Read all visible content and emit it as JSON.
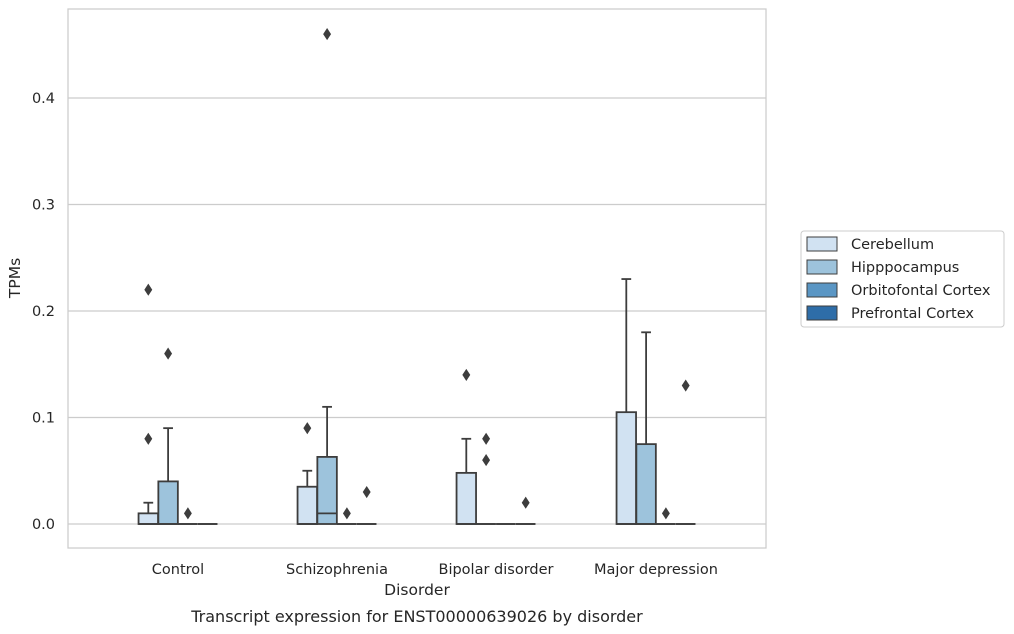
{
  "chart_data": {
    "type": "box",
    "xlabel": "Disorder",
    "ylabel": "TPMs",
    "caption": "Transcript expression for ENST00000639026 by disorder",
    "categories": [
      "Control",
      "Schizophrenia",
      "Bipolar disorder",
      "Major depression"
    ],
    "ylim": [
      -0.022,
      0.48
    ],
    "yticks": [
      0.0,
      0.1,
      0.2,
      0.3,
      0.4
    ],
    "ytick_labels": [
      "0.0",
      "0.1",
      "0.2",
      "0.3",
      "0.4"
    ],
    "grid": "horizontal",
    "legend_placement": "right-center",
    "colors": {
      "Cerebellum": "#d1e2f2",
      "Hipppocampus": "#9dc3dc",
      "Orbitofontal Cortex": "#5a96c4",
      "Prefrontal Cortex": "#2e6da8",
      "box_edge": "#3d3d3d",
      "grid": "#cccccc",
      "frame": "#cccccc"
    },
    "series": [
      {
        "name": "Cerebellum",
        "boxes": [
          {
            "category": "Control",
            "q1": 0.0,
            "median": 0.0,
            "q3": 0.01,
            "whisker_low": 0.0,
            "whisker_high": 0.02,
            "outliers": [
              0.08,
              0.22
            ]
          },
          {
            "category": "Schizophrenia",
            "q1": 0.0,
            "median": 0.0,
            "q3": 0.035,
            "whisker_low": 0.0,
            "whisker_high": 0.05,
            "outliers": [
              0.09
            ]
          },
          {
            "category": "Bipolar disorder",
            "q1": 0.0,
            "median": 0.0,
            "q3": 0.048,
            "whisker_low": 0.0,
            "whisker_high": 0.08,
            "outliers": [
              0.14
            ]
          },
          {
            "category": "Major depression",
            "q1": 0.0,
            "median": 0.0,
            "q3": 0.105,
            "whisker_low": 0.0,
            "whisker_high": 0.23,
            "outliers": []
          }
        ]
      },
      {
        "name": "Hipppocampus",
        "boxes": [
          {
            "category": "Control",
            "q1": 0.0,
            "median": 0.0,
            "q3": 0.04,
            "whisker_low": 0.0,
            "whisker_high": 0.09,
            "outliers": [
              0.16
            ]
          },
          {
            "category": "Schizophrenia",
            "q1": 0.0,
            "median": 0.01,
            "q3": 0.063,
            "whisker_low": 0.0,
            "whisker_high": 0.11,
            "outliers": [
              0.46
            ]
          },
          {
            "category": "Bipolar disorder",
            "q1": 0.0,
            "median": 0.0,
            "q3": 0.0,
            "whisker_low": 0.0,
            "whisker_high": 0.0,
            "outliers": [
              0.06,
              0.08
            ]
          },
          {
            "category": "Major depression",
            "q1": 0.0,
            "median": 0.0,
            "q3": 0.075,
            "whisker_low": 0.0,
            "whisker_high": 0.18,
            "outliers": []
          }
        ]
      },
      {
        "name": "Orbitofontal Cortex",
        "boxes": [
          {
            "category": "Control",
            "q1": 0.0,
            "median": 0.0,
            "q3": 0.0,
            "whisker_low": 0.0,
            "whisker_high": 0.0,
            "outliers": [
              0.01
            ]
          },
          {
            "category": "Schizophrenia",
            "q1": 0.0,
            "median": 0.0,
            "q3": 0.0,
            "whisker_low": 0.0,
            "whisker_high": 0.0,
            "outliers": [
              0.01
            ]
          },
          {
            "category": "Bipolar disorder",
            "q1": 0.0,
            "median": 0.0,
            "q3": 0.0,
            "whisker_low": 0.0,
            "whisker_high": 0.0,
            "outliers": []
          },
          {
            "category": "Major depression",
            "q1": 0.0,
            "median": 0.0,
            "q3": 0.0,
            "whisker_low": 0.0,
            "whisker_high": 0.0,
            "outliers": [
              0.01
            ]
          }
        ]
      },
      {
        "name": "Prefrontal Cortex",
        "boxes": [
          {
            "category": "Control",
            "q1": 0.0,
            "median": 0.0,
            "q3": 0.0,
            "whisker_low": 0.0,
            "whisker_high": 0.0,
            "outliers": []
          },
          {
            "category": "Schizophrenia",
            "q1": 0.0,
            "median": 0.0,
            "q3": 0.0,
            "whisker_low": 0.0,
            "whisker_high": 0.0,
            "outliers": [
              0.03
            ]
          },
          {
            "category": "Bipolar disorder",
            "q1": 0.0,
            "median": 0.0,
            "q3": 0.0,
            "whisker_low": 0.0,
            "whisker_high": 0.0,
            "outliers": [
              0.02
            ]
          },
          {
            "category": "Major depression",
            "q1": 0.0,
            "median": 0.0,
            "q3": 0.0,
            "whisker_low": 0.0,
            "whisker_high": 0.0,
            "outliers": [
              0.13
            ]
          }
        ]
      }
    ]
  }
}
